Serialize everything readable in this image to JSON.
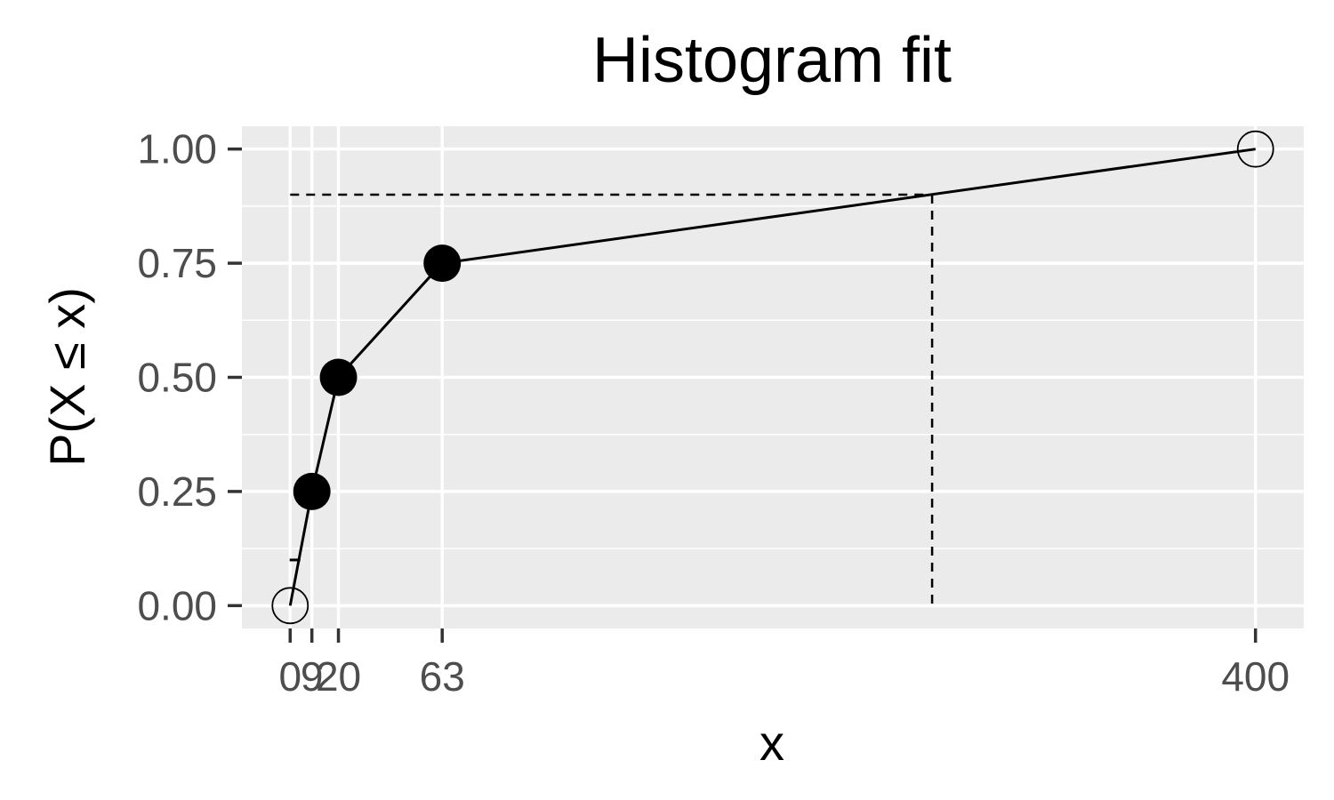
{
  "chart_data": {
    "type": "line",
    "title": "Histogram fit",
    "xlabel": "x",
    "ylabel": "P(X ≤ x)",
    "xlim": [
      -20,
      420
    ],
    "ylim": [
      -0.05,
      1.05
    ],
    "x_ticks": [
      0,
      9,
      20,
      63,
      400
    ],
    "x_tick_labels": [
      "0",
      "9",
      "20",
      "63",
      "400"
    ],
    "y_ticks": [
      0,
      0.25,
      0.5,
      0.75,
      1
    ],
    "y_tick_labels": [
      "0.00",
      "0.25",
      "0.50",
      "0.75",
      "1.00"
    ],
    "grid": true,
    "background": "#ebebeb",
    "gridline_color": "#ffffff",
    "series": [
      {
        "points": [
          {
            "x": 0,
            "y": 0,
            "marker": "open"
          },
          {
            "x": 9,
            "y": 0.25,
            "marker": "filled"
          },
          {
            "x": 20,
            "y": 0.5,
            "marker": "filled"
          },
          {
            "x": 63,
            "y": 0.75,
            "marker": "filled"
          },
          {
            "x": 400,
            "y": 1,
            "marker": "open"
          }
        ],
        "color": "#000000"
      }
    ],
    "annotations": {
      "quantile_reference": {
        "x": 266,
        "y": 0.9,
        "style": "dashed"
      },
      "small_tick": {
        "x": 2,
        "y": 0.1
      }
    }
  }
}
